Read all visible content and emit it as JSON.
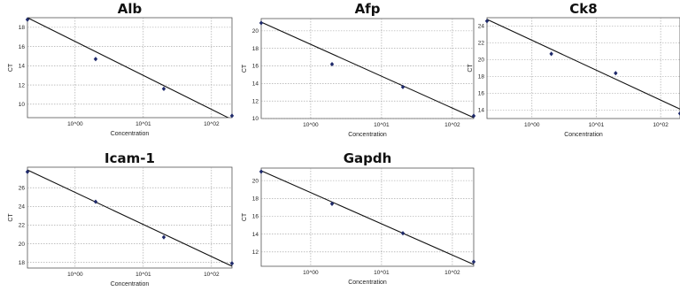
{
  "figure": {
    "background": "#ffffff"
  },
  "style": {
    "point_color": "#1f2a6b",
    "line_color": "#111111",
    "grid_color": "#9a9a9a"
  },
  "chart_data": [
    {
      "type": "scatter",
      "title": "Alb",
      "xlabel": "Concentration",
      "ylabel": "CT",
      "xscale": "log",
      "xlim": [
        0.2,
        200
      ],
      "ylim": [
        8.6,
        19.0
      ],
      "xticks": [
        1,
        10,
        100
      ],
      "xtick_labels": [
        "10^00",
        "10^01",
        "10^02"
      ],
      "yticks": [
        10,
        12,
        14,
        16,
        18
      ],
      "grid": true,
      "points": [
        {
          "x": 0.2,
          "y": 18.8
        },
        {
          "x": 2,
          "y": 14.7
        },
        {
          "x": 20,
          "y": 11.6
        },
        {
          "x": 200,
          "y": 8.8
        }
      ],
      "fit_line": [
        {
          "x": 0.2,
          "y": 19.0
        },
        {
          "x": 200,
          "y": 8.4
        }
      ]
    },
    {
      "type": "scatter",
      "title": "Afp",
      "xlabel": "Concentration",
      "ylabel": "CT",
      "xscale": "log",
      "xlim": [
        0.2,
        200
      ],
      "ylim": [
        10.0,
        21.4
      ],
      "xticks": [
        1,
        10,
        100
      ],
      "xtick_labels": [
        "10^00",
        "10^01",
        "10^02"
      ],
      "yticks": [
        10,
        12,
        14,
        16,
        18,
        20
      ],
      "grid": true,
      "points": [
        {
          "x": 0.2,
          "y": 20.9
        },
        {
          "x": 2,
          "y": 16.2
        },
        {
          "x": 20,
          "y": 13.6
        },
        {
          "x": 200,
          "y": 10.3
        }
      ],
      "fit_line": [
        {
          "x": 0.2,
          "y": 21.0
        },
        {
          "x": 200,
          "y": 10.1
        }
      ]
    },
    {
      "type": "scatter",
      "title": "Ck8",
      "xlabel": "Concentration",
      "ylabel": "CT",
      "xscale": "log",
      "xlim": [
        0.2,
        200
      ],
      "ylim": [
        13.0,
        25.0
      ],
      "xticks": [
        1,
        10,
        100
      ],
      "xtick_labels": [
        "10^00",
        "10^01",
        "10^02"
      ],
      "yticks": [
        14,
        16,
        18,
        20,
        22,
        24
      ],
      "grid": true,
      "points": [
        {
          "x": 0.2,
          "y": 24.6
        },
        {
          "x": 2,
          "y": 20.7
        },
        {
          "x": 20,
          "y": 18.4
        },
        {
          "x": 200,
          "y": 13.6
        }
      ],
      "fit_line": [
        {
          "x": 0.2,
          "y": 24.8
        },
        {
          "x": 300,
          "y": 13.5
        }
      ]
    },
    {
      "type": "scatter",
      "title": "Icam-1",
      "xlabel": "Concentration",
      "ylabel": "CT",
      "xscale": "log",
      "xlim": [
        0.2,
        200
      ],
      "ylim": [
        17.4,
        28.2
      ],
      "xticks": [
        1,
        10,
        100
      ],
      "xtick_labels": [
        "10^00",
        "10^01",
        "10^02"
      ],
      "yticks": [
        18,
        20,
        22,
        24,
        26
      ],
      "grid": true,
      "points": [
        {
          "x": 0.2,
          "y": 27.7
        },
        {
          "x": 2,
          "y": 24.5
        },
        {
          "x": 20,
          "y": 20.7
        },
        {
          "x": 200,
          "y": 17.9
        }
      ],
      "fit_line": [
        {
          "x": 0.2,
          "y": 27.9
        },
        {
          "x": 200,
          "y": 17.6
        }
      ]
    },
    {
      "type": "scatter",
      "title": "Gapdh",
      "xlabel": "Concentration",
      "ylabel": "CT",
      "xscale": "log",
      "xlim": [
        0.2,
        200
      ],
      "ylim": [
        10.4,
        21.4
      ],
      "xticks": [
        1,
        10,
        100
      ],
      "xtick_labels": [
        "10^00",
        "10^01",
        "10^02"
      ],
      "yticks": [
        12,
        14,
        16,
        18,
        20
      ],
      "grid": true,
      "points": [
        {
          "x": 0.2,
          "y": 21.0
        },
        {
          "x": 2,
          "y": 17.4
        },
        {
          "x": 20,
          "y": 14.1
        },
        {
          "x": 200,
          "y": 10.9
        }
      ],
      "fit_line": [
        {
          "x": 0.2,
          "y": 21.1
        },
        {
          "x": 200,
          "y": 10.6
        }
      ]
    }
  ]
}
